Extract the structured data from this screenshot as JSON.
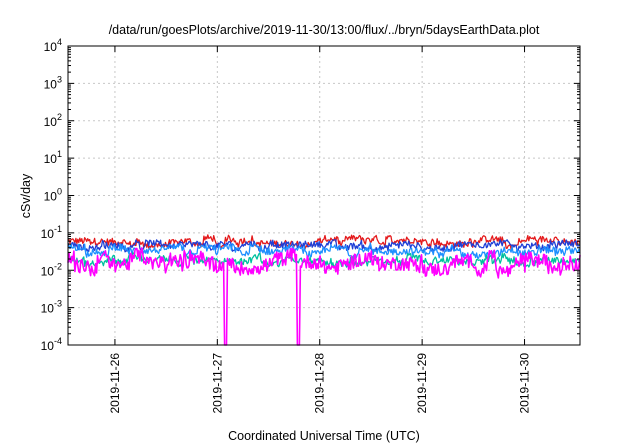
{
  "chart_data": {
    "type": "line",
    "title": "/data/run/goesPlots/archive/2019-11-30/13:00/flux/../bryn/5daysEarthData.plot",
    "xlabel": "Coordinated Universal Time (UTC)",
    "ylabel": "cSv/day",
    "yscale": "log",
    "ylim": [
      0.0001,
      10000
    ],
    "xlim": [
      "2019-11-25 13:00",
      "2019-11-30 13:00"
    ],
    "grid": true,
    "legend": "none",
    "y_ticks": [
      {
        "value": 0.0001,
        "base": "10",
        "exp": "-4"
      },
      {
        "value": 0.001,
        "base": "10",
        "exp": "-3"
      },
      {
        "value": 0.01,
        "base": "10",
        "exp": "-2"
      },
      {
        "value": 0.1,
        "base": "10",
        "exp": "-1"
      },
      {
        "value": 1,
        "base": "10",
        "exp": "0"
      },
      {
        "value": 10,
        "base": "10",
        "exp": "1"
      },
      {
        "value": 100,
        "base": "10",
        "exp": "2"
      },
      {
        "value": 1000,
        "base": "10",
        "exp": "3"
      },
      {
        "value": 10000,
        "base": "10",
        "exp": "4"
      }
    ],
    "x_ticks": [
      "2019-11-26",
      "2019-11-27",
      "2019-11-28",
      "2019-11-29",
      "2019-11-30"
    ],
    "series": [
      {
        "color": "#e41a1c",
        "level_low": 0.035,
        "level_high": 0.09
      },
      {
        "color": "#1f3fd6",
        "level_low": 0.03,
        "level_high": 0.07
      },
      {
        "color": "#1e90ff",
        "level_low": 0.02,
        "level_high": 0.055
      },
      {
        "color": "#00c0a0",
        "level_low": 0.012,
        "level_high": 0.03
      },
      {
        "color": "#ff00ff",
        "level_low": 0.006,
        "level_high": 0.04,
        "dropouts": [
          "2019-11-27 02:00",
          "2019-11-27 19:00"
        ]
      }
    ]
  }
}
